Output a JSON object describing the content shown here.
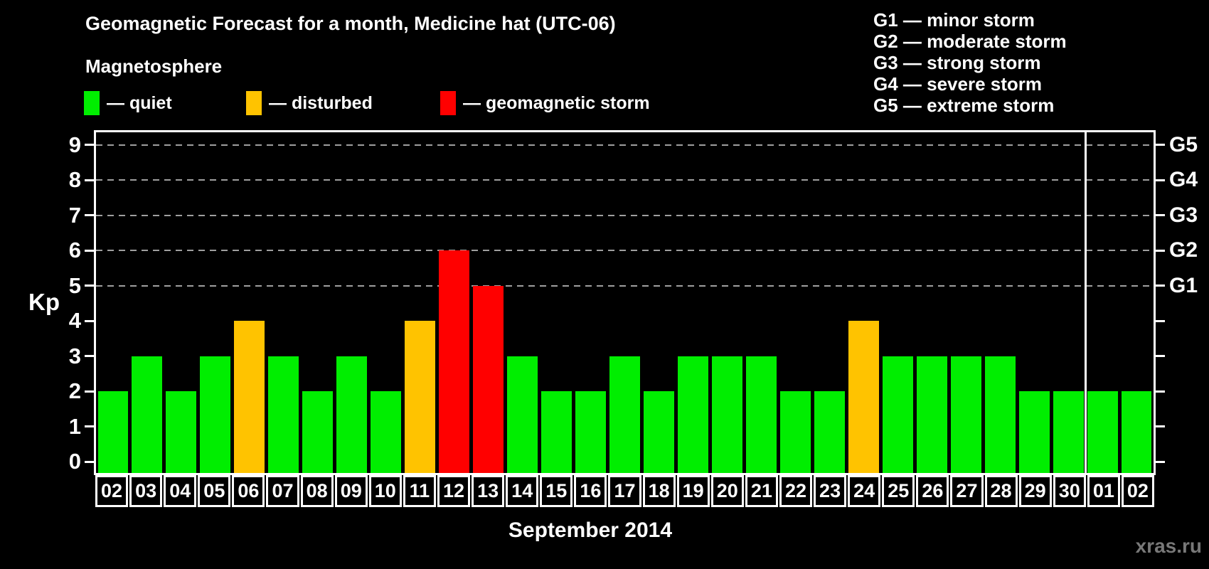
{
  "header": {
    "title": "Geomagnetic Forecast for a month, Medicine hat (UTC-06)",
    "subtitle": "Magnetosphere"
  },
  "legend": {
    "items": [
      {
        "key": "quiet",
        "label": "— quiet",
        "color": "#00EE00"
      },
      {
        "key": "disturbed",
        "label": "— disturbed",
        "color": "#FFC300"
      },
      {
        "key": "storm",
        "label": "— geomagnetic storm",
        "color": "#FF0000"
      }
    ]
  },
  "storm_scale_legend": {
    "items": [
      "G1 — minor storm",
      "G2 — moderate storm",
      "G3 — strong storm",
      "G4 — severe storm",
      "G5 — extreme storm"
    ]
  },
  "chart_data": {
    "type": "bar",
    "title": "Geomagnetic Forecast for a month, Medicine hat (UTC-06)",
    "ylabel": "Kp",
    "xlabel": "September 2014",
    "ylim": [
      0,
      9
    ],
    "yticks": [
      0,
      1,
      2,
      3,
      4,
      5,
      6,
      7,
      8,
      9
    ],
    "gridlines_at": [
      5,
      6,
      7,
      8,
      9
    ],
    "grid": "dashed",
    "legend_position": "top",
    "right_axis_labels": [
      {
        "kp": 5,
        "label": "G1"
      },
      {
        "kp": 6,
        "label": "G2"
      },
      {
        "kp": 7,
        "label": "G3"
      },
      {
        "kp": 8,
        "label": "G4"
      },
      {
        "kp": 9,
        "label": "G5"
      }
    ],
    "categories": [
      "02",
      "03",
      "04",
      "05",
      "06",
      "07",
      "08",
      "09",
      "10",
      "11",
      "12",
      "13",
      "14",
      "15",
      "16",
      "17",
      "18",
      "19",
      "20",
      "21",
      "22",
      "23",
      "24",
      "25",
      "26",
      "27",
      "28",
      "29",
      "30",
      "01",
      "02"
    ],
    "values": [
      2,
      3,
      2,
      3,
      4,
      3,
      2,
      3,
      2,
      4,
      6,
      5,
      3,
      2,
      2,
      3,
      2,
      3,
      3,
      3,
      2,
      2,
      4,
      3,
      3,
      3,
      3,
      2,
      2,
      2,
      2
    ],
    "statuses": [
      "quiet",
      "quiet",
      "quiet",
      "quiet",
      "disturbed",
      "quiet",
      "quiet",
      "quiet",
      "quiet",
      "disturbed",
      "storm",
      "storm",
      "quiet",
      "quiet",
      "quiet",
      "quiet",
      "quiet",
      "quiet",
      "quiet",
      "quiet",
      "quiet",
      "quiet",
      "disturbed",
      "quiet",
      "quiet",
      "quiet",
      "quiet",
      "quiet",
      "quiet",
      "quiet",
      "quiet"
    ],
    "colors_by_status": {
      "quiet": "#00EE00",
      "disturbed": "#FFC300",
      "storm": "#FF0000"
    },
    "month_separator_after_index": 28
  },
  "colors": {
    "background": "#000000",
    "axis": "#FFFFFF",
    "grid": "#9F9F9F",
    "text": "#FFFFFF",
    "watermark": "#787878"
  },
  "footer": {
    "caption": "September 2014",
    "watermark": "xras.ru"
  }
}
